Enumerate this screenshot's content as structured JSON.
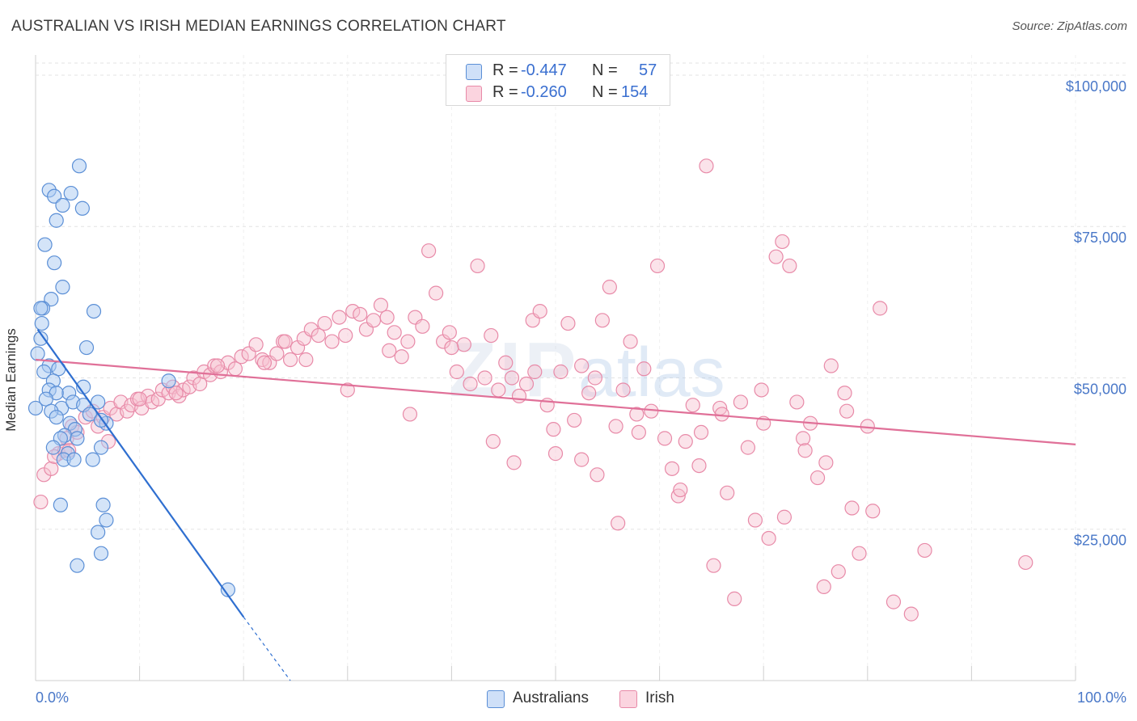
{
  "header": {
    "title": "AUSTRALIAN VS IRISH MEDIAN EARNINGS CORRELATION CHART",
    "source": "Source: ZipAtlas.com"
  },
  "legend": {
    "rows": [
      {
        "r_label": "R =",
        "r_value": "-0.447",
        "n_label": "N =",
        "n_value": "57",
        "color": "#a9c9f2"
      },
      {
        "r_label": "R =",
        "r_value": "-0.260",
        "n_label": "N =",
        "n_value": "154",
        "color": "#f6b8cb"
      }
    ],
    "series_names": [
      "Australians",
      "Irish"
    ]
  },
  "colors": {
    "australians_fill": "#a9c9f2",
    "australians_stroke": "#5b8fd6",
    "australians_line": "#2f6fd0",
    "irish_fill": "#f6c0d0",
    "irish_stroke": "#e88aa8",
    "irish_line": "#e07098",
    "tick_text": "#4a78c8"
  },
  "chart_data": {
    "type": "scatter",
    "title": "AUSTRALIAN VS IRISH MEDIAN EARNINGS CORRELATION CHART",
    "xlabel": "",
    "ylabel": "Median Earnings",
    "xlim": [
      0,
      100
    ],
    "ylim": [
      0,
      102000
    ],
    "x_tick_labels": [
      "0.0%",
      "100.0%"
    ],
    "y_ticks": [
      25000,
      50000,
      75000,
      100000
    ],
    "y_tick_labels": [
      "$25,000",
      "$50,000",
      "$75,000",
      "$100,000"
    ],
    "grid": true,
    "watermark": "ZIPatlas",
    "series": [
      {
        "name": "Australians",
        "points": [
          [
            4.2,
            85000
          ],
          [
            1.3,
            81000
          ],
          [
            3.4,
            80500
          ],
          [
            1.8,
            80000
          ],
          [
            2.6,
            78500
          ],
          [
            4.5,
            78000
          ],
          [
            2.0,
            76000
          ],
          [
            0.9,
            72000
          ],
          [
            1.8,
            69000
          ],
          [
            2.6,
            65000
          ],
          [
            1.5,
            63000
          ],
          [
            0.7,
            61500
          ],
          [
            5.6,
            61000
          ],
          [
            0.5,
            61500
          ],
          [
            0.6,
            59000
          ],
          [
            0.5,
            56500
          ],
          [
            4.9,
            55000
          ],
          [
            0.2,
            54000
          ],
          [
            1.3,
            52000
          ],
          [
            2.2,
            51500
          ],
          [
            0.8,
            51000
          ],
          [
            1.7,
            49500
          ],
          [
            4.6,
            48500
          ],
          [
            12.8,
            49500
          ],
          [
            1.3,
            48000
          ],
          [
            3.2,
            47500
          ],
          [
            2.0,
            47500
          ],
          [
            1.0,
            46500
          ],
          [
            0.0,
            45000
          ],
          [
            2.5,
            45000
          ],
          [
            3.6,
            46000
          ],
          [
            6.0,
            46000
          ],
          [
            4.6,
            45500
          ],
          [
            1.5,
            44500
          ],
          [
            2.0,
            43500
          ],
          [
            5.2,
            44000
          ],
          [
            3.3,
            42500
          ],
          [
            3.8,
            41500
          ],
          [
            6.8,
            42500
          ],
          [
            2.8,
            40500
          ],
          [
            6.3,
            43000
          ],
          [
            4.0,
            40000
          ],
          [
            2.4,
            40000
          ],
          [
            1.7,
            38500
          ],
          [
            6.3,
            38500
          ],
          [
            3.1,
            37500
          ],
          [
            2.7,
            36500
          ],
          [
            5.5,
            36500
          ],
          [
            3.7,
            36500
          ],
          [
            2.4,
            29000
          ],
          [
            6.5,
            29000
          ],
          [
            6.8,
            26500
          ],
          [
            6.0,
            24500
          ],
          [
            6.3,
            21000
          ],
          [
            4.0,
            19000
          ],
          [
            18.5,
            15000
          ]
        ],
        "trend": {
          "x0": 0.2,
          "y0": 58000,
          "x1": 20.0,
          "y1": 10500,
          "dashed_to_x": 24.5,
          "dashed_to_y": 0
        }
      },
      {
        "name": "Irish",
        "points": [
          [
            0.5,
            29500
          ],
          [
            0.8,
            34000
          ],
          [
            1.5,
            35000
          ],
          [
            2.2,
            37500
          ],
          [
            1.8,
            37000
          ],
          [
            2.8,
            38000
          ],
          [
            3.0,
            40000
          ],
          [
            3.5,
            42000
          ],
          [
            4.0,
            41000
          ],
          [
            4.8,
            43500
          ],
          [
            5.5,
            44500
          ],
          [
            6.0,
            42000
          ],
          [
            6.5,
            43500
          ],
          [
            7.2,
            45000
          ],
          [
            7.8,
            44000
          ],
          [
            8.2,
            46000
          ],
          [
            8.8,
            44500
          ],
          [
            9.2,
            45500
          ],
          [
            9.8,
            46500
          ],
          [
            10.2,
            45000
          ],
          [
            10.8,
            47000
          ],
          [
            11.2,
            46000
          ],
          [
            11.8,
            46500
          ],
          [
            12.2,
            48000
          ],
          [
            12.8,
            47500
          ],
          [
            13.2,
            48500
          ],
          [
            13.8,
            47000
          ],
          [
            14.2,
            48000
          ],
          [
            14.8,
            48500
          ],
          [
            15.2,
            50000
          ],
          [
            15.8,
            49000
          ],
          [
            16.2,
            51000
          ],
          [
            16.8,
            50500
          ],
          [
            17.2,
            52000
          ],
          [
            17.8,
            51000
          ],
          [
            18.5,
            52500
          ],
          [
            19.2,
            51500
          ],
          [
            19.8,
            53500
          ],
          [
            20.5,
            54000
          ],
          [
            21.2,
            55500
          ],
          [
            21.8,
            53000
          ],
          [
            22.5,
            52500
          ],
          [
            23.2,
            54000
          ],
          [
            23.8,
            56000
          ],
          [
            24.5,
            53000
          ],
          [
            25.2,
            55000
          ],
          [
            25.8,
            56500
          ],
          [
            26.5,
            58000
          ],
          [
            27.2,
            57000
          ],
          [
            27.8,
            59000
          ],
          [
            28.5,
            56000
          ],
          [
            29.2,
            60000
          ],
          [
            29.8,
            57000
          ],
          [
            30.5,
            61000
          ],
          [
            31.2,
            60500
          ],
          [
            31.8,
            58000
          ],
          [
            32.5,
            59500
          ],
          [
            33.2,
            62000
          ],
          [
            33.8,
            60000
          ],
          [
            34.5,
            57500
          ],
          [
            35.2,
            53500
          ],
          [
            35.8,
            56000
          ],
          [
            36.5,
            60000
          ],
          [
            37.2,
            58500
          ],
          [
            37.8,
            71000
          ],
          [
            38.5,
            64000
          ],
          [
            39.2,
            56000
          ],
          [
            39.8,
            57500
          ],
          [
            40.5,
            51000
          ],
          [
            41.2,
            55500
          ],
          [
            41.8,
            49000
          ],
          [
            42.5,
            68500
          ],
          [
            43.2,
            50000
          ],
          [
            43.8,
            57000
          ],
          [
            44.5,
            48000
          ],
          [
            45.2,
            52500
          ],
          [
            45.8,
            50000
          ],
          [
            46.5,
            47000
          ],
          [
            47.2,
            49000
          ],
          [
            47.8,
            59500
          ],
          [
            48.5,
            61000
          ],
          [
            49.2,
            45500
          ],
          [
            49.8,
            41500
          ],
          [
            50.5,
            51000
          ],
          [
            51.2,
            59000
          ],
          [
            51.8,
            43000
          ],
          [
            52.5,
            52000
          ],
          [
            53.2,
            47500
          ],
          [
            53.8,
            50000
          ],
          [
            54.5,
            59500
          ],
          [
            55.2,
            65000
          ],
          [
            55.8,
            42000
          ],
          [
            56.5,
            48000
          ],
          [
            57.2,
            56000
          ],
          [
            57.8,
            44000
          ],
          [
            58.5,
            51500
          ],
          [
            59.2,
            44500
          ],
          [
            59.8,
            68500
          ],
          [
            60.5,
            40000
          ],
          [
            61.2,
            35000
          ],
          [
            61.8,
            30500
          ],
          [
            62.5,
            39500
          ],
          [
            63.2,
            45500
          ],
          [
            63.8,
            35500
          ],
          [
            64.5,
            85000
          ],
          [
            65.2,
            19000
          ],
          [
            65.8,
            45000
          ],
          [
            66.5,
            31000
          ],
          [
            67.2,
            13500
          ],
          [
            67.8,
            46000
          ],
          [
            68.5,
            38500
          ],
          [
            69.2,
            26500
          ],
          [
            69.8,
            48000
          ],
          [
            70.5,
            23500
          ],
          [
            71.2,
            70000
          ],
          [
            71.8,
            72500
          ],
          [
            72.5,
            68500
          ],
          [
            73.2,
            46000
          ],
          [
            73.8,
            40000
          ],
          [
            74.5,
            42500
          ],
          [
            75.2,
            33500
          ],
          [
            75.8,
            15500
          ],
          [
            76.5,
            52000
          ],
          [
            77.2,
            18000
          ],
          [
            77.8,
            47500
          ],
          [
            78.5,
            28500
          ],
          [
            79.2,
            21000
          ],
          [
            80.5,
            28000
          ],
          [
            81.2,
            61500
          ],
          [
            82.5,
            13000
          ],
          [
            84.2,
            11000
          ],
          [
            85.5,
            21500
          ],
          [
            95.2,
            19500
          ],
          [
            17.5,
            52000
          ],
          [
            22.0,
            52500
          ],
          [
            26.0,
            53000
          ],
          [
            30.0,
            48000
          ],
          [
            34.0,
            54500
          ],
          [
            36.0,
            44000
          ],
          [
            40.0,
            55000
          ],
          [
            44.0,
            39500
          ],
          [
            46.0,
            36000
          ],
          [
            48.0,
            51000
          ],
          [
            50.0,
            37500
          ],
          [
            52.5,
            36500
          ],
          [
            54.0,
            34000
          ],
          [
            56.0,
            26000
          ],
          [
            58.0,
            41000
          ],
          [
            62.0,
            31500
          ],
          [
            64.0,
            41000
          ],
          [
            66.0,
            44000
          ],
          [
            70.0,
            42500
          ],
          [
            72.0,
            27000
          ],
          [
            74.0,
            38000
          ],
          [
            76.0,
            36000
          ],
          [
            78.0,
            44500
          ],
          [
            80.0,
            42000
          ],
          [
            3.2,
            38000
          ],
          [
            7.0,
            39500
          ],
          [
            10.0,
            46500
          ],
          [
            13.5,
            47500
          ],
          [
            24.0,
            56000
          ]
        ],
        "trend": {
          "x0": 0.0,
          "y0": 53000,
          "x1": 100.0,
          "y1": 39000
        }
      }
    ]
  }
}
